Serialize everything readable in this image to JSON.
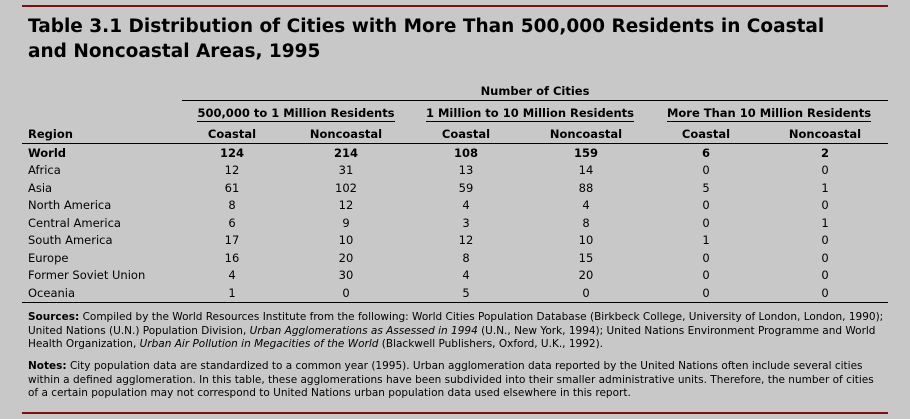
{
  "title": "Table 3.1  Distribution of Cities with More Than 500,000 Residents in Coastal and Noncoastal Areas, 1995",
  "table": {
    "super_header": "Number of Cities",
    "groups": [
      "500,000 to 1 Million Residents",
      "1 Million to 10 Million Residents",
      "More Than 10 Million Residents"
    ],
    "columns": [
      "Region",
      "Coastal",
      "Noncoastal",
      "Coastal",
      "Noncoastal",
      "Coastal",
      "Noncoastal"
    ],
    "rows": [
      [
        "World",
        124,
        214,
        108,
        159,
        6,
        2
      ],
      [
        "Africa",
        12,
        31,
        13,
        14,
        0,
        0
      ],
      [
        "Asia",
        61,
        102,
        59,
        88,
        5,
        1
      ],
      [
        "North America",
        8,
        12,
        4,
        4,
        0,
        0
      ],
      [
        "Central America",
        6,
        9,
        3,
        8,
        0,
        1
      ],
      [
        "South America",
        17,
        10,
        12,
        10,
        1,
        0
      ],
      [
        "Europe",
        16,
        20,
        8,
        15,
        0,
        0
      ],
      [
        "Former Soviet Union",
        4,
        30,
        4,
        20,
        0,
        0
      ],
      [
        "Oceania",
        1,
        0,
        5,
        0,
        0,
        0
      ]
    ]
  },
  "sources": {
    "label": "Sources:",
    "parts": [
      "Compiled by the World Resources Institute from the following: World Cities Population Database (Birkbeck College, University of London, London, 1990); United Nations (U.N.) Population Division, ",
      "Urban Agglomerations as Assessed in 1994",
      " (U.N., New York, 1994); United Nations Environment Programme and World Health Organization, ",
      "Urban Air Pollution in Megacities of the World",
      " (Blackwell Publishers, Oxford, U.K., 1992)."
    ]
  },
  "notes": {
    "label": "Notes:",
    "text": "City population data are standardized to a common year (1995). Urban agglomeration data reported by the United Nations often include several cities within a defined agglomeration. In this table, these agglomerations have been subdivided into their smaller administrative units. Therefore, the number of cities of a certain population may not correspond to United Nations urban population data used elsewhere in this report."
  }
}
